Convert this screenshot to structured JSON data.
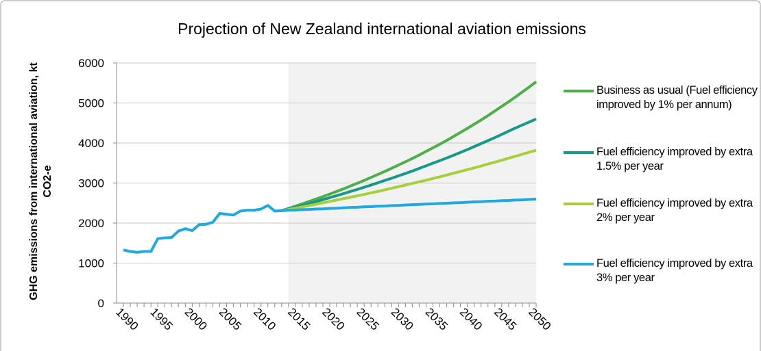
{
  "chart_data": {
    "type": "line",
    "title": "Projection of New Zealand international aviation emissions",
    "y_label": "GHG emissions from international aviation, kt CO2-e",
    "x": [
      1990,
      1991,
      1992,
      1993,
      1994,
      1995,
      1996,
      1997,
      1998,
      1999,
      2000,
      2001,
      2002,
      2003,
      2004,
      2005,
      2006,
      2007,
      2008,
      2009,
      2010,
      2011,
      2012,
      2013,
      2014,
      2015,
      2016,
      2017,
      2018,
      2019,
      2020,
      2021,
      2022,
      2023,
      2024,
      2025,
      2026,
      2027,
      2028,
      2029,
      2030,
      2031,
      2032,
      2033,
      2034,
      2035,
      2036,
      2037,
      2038,
      2039,
      2040,
      2041,
      2042,
      2043,
      2044,
      2045,
      2046,
      2047,
      2048,
      2049,
      2050
    ],
    "series": [
      {
        "name": "Business as usual (Fuel efficiency improved by 1% per annum)",
        "color": "#4caf47",
        "values": [
          null,
          null,
          null,
          null,
          null,
          null,
          null,
          null,
          null,
          null,
          null,
          null,
          null,
          null,
          null,
          null,
          null,
          null,
          null,
          null,
          null,
          null,
          null,
          2310,
          2365,
          2420,
          2480,
          2540,
          2600,
          2660,
          2725,
          2790,
          2855,
          2925,
          2995,
          3065,
          3140,
          3215,
          3290,
          3370,
          3450,
          3530,
          3615,
          3700,
          3790,
          3880,
          3970,
          4065,
          4165,
          4265,
          4365,
          4470,
          4575,
          4685,
          4800,
          4915,
          5030,
          5150,
          5275,
          5400,
          5530
        ]
      },
      {
        "name": "Fuel efficiency improved by extra 1.5% per year",
        "color": "#17998a",
        "values": [
          null,
          null,
          null,
          null,
          null,
          null,
          null,
          null,
          null,
          null,
          null,
          null,
          null,
          null,
          null,
          null,
          null,
          null,
          null,
          null,
          null,
          null,
          null,
          2310,
          2355,
          2400,
          2445,
          2490,
          2535,
          2585,
          2635,
          2685,
          2735,
          2790,
          2840,
          2895,
          2950,
          3005,
          3065,
          3120,
          3180,
          3240,
          3300,
          3365,
          3430,
          3495,
          3560,
          3625,
          3695,
          3765,
          3835,
          3910,
          3985,
          4060,
          4135,
          4215,
          4295,
          4375,
          4450,
          4525,
          4600
        ]
      },
      {
        "name": "Fuel efficiency improved by extra 2% per year",
        "color": "#a8cf3a",
        "values": [
          null,
          null,
          null,
          null,
          null,
          null,
          null,
          null,
          null,
          null,
          null,
          null,
          null,
          null,
          null,
          null,
          null,
          null,
          null,
          null,
          null,
          null,
          null,
          2310,
          2340,
          2370,
          2405,
          2435,
          2470,
          2505,
          2540,
          2575,
          2610,
          2645,
          2680,
          2715,
          2755,
          2790,
          2830,
          2870,
          2910,
          2950,
          2990,
          3030,
          3070,
          3115,
          3155,
          3200,
          3245,
          3290,
          3335,
          3380,
          3425,
          3475,
          3520,
          3570,
          3620,
          3670,
          3720,
          3770,
          3820
        ]
      },
      {
        "name": "Fuel efficiency improved by extra 3% per year",
        "color": "#1fa8e2",
        "values": [
          1330,
          1290,
          1270,
          1290,
          1290,
          1610,
          1630,
          1640,
          1800,
          1860,
          1810,
          1960,
          1970,
          2020,
          2240,
          2220,
          2200,
          2300,
          2320,
          2320,
          2350,
          2440,
          2300,
          2310,
          2320,
          2325,
          2335,
          2340,
          2350,
          2355,
          2365,
          2370,
          2380,
          2390,
          2395,
          2405,
          2410,
          2420,
          2425,
          2435,
          2440,
          2450,
          2460,
          2465,
          2475,
          2480,
          2490,
          2495,
          2505,
          2510,
          2520,
          2530,
          2535,
          2545,
          2550,
          2560,
          2565,
          2575,
          2580,
          2590,
          2600
        ]
      }
    ],
    "xlim": [
      1989,
      2050
    ],
    "xticks": [
      1990,
      1995,
      2000,
      2005,
      2010,
      2015,
      2020,
      2025,
      2030,
      2035,
      2040,
      2045,
      2050
    ],
    "ylim": [
      0,
      6000
    ],
    "yticks": [
      0,
      1000,
      2000,
      3000,
      4000,
      5000,
      6000
    ],
    "grid": true,
    "shaded_xrange": [
      2014,
      2050
    ],
    "legend": "right"
  }
}
